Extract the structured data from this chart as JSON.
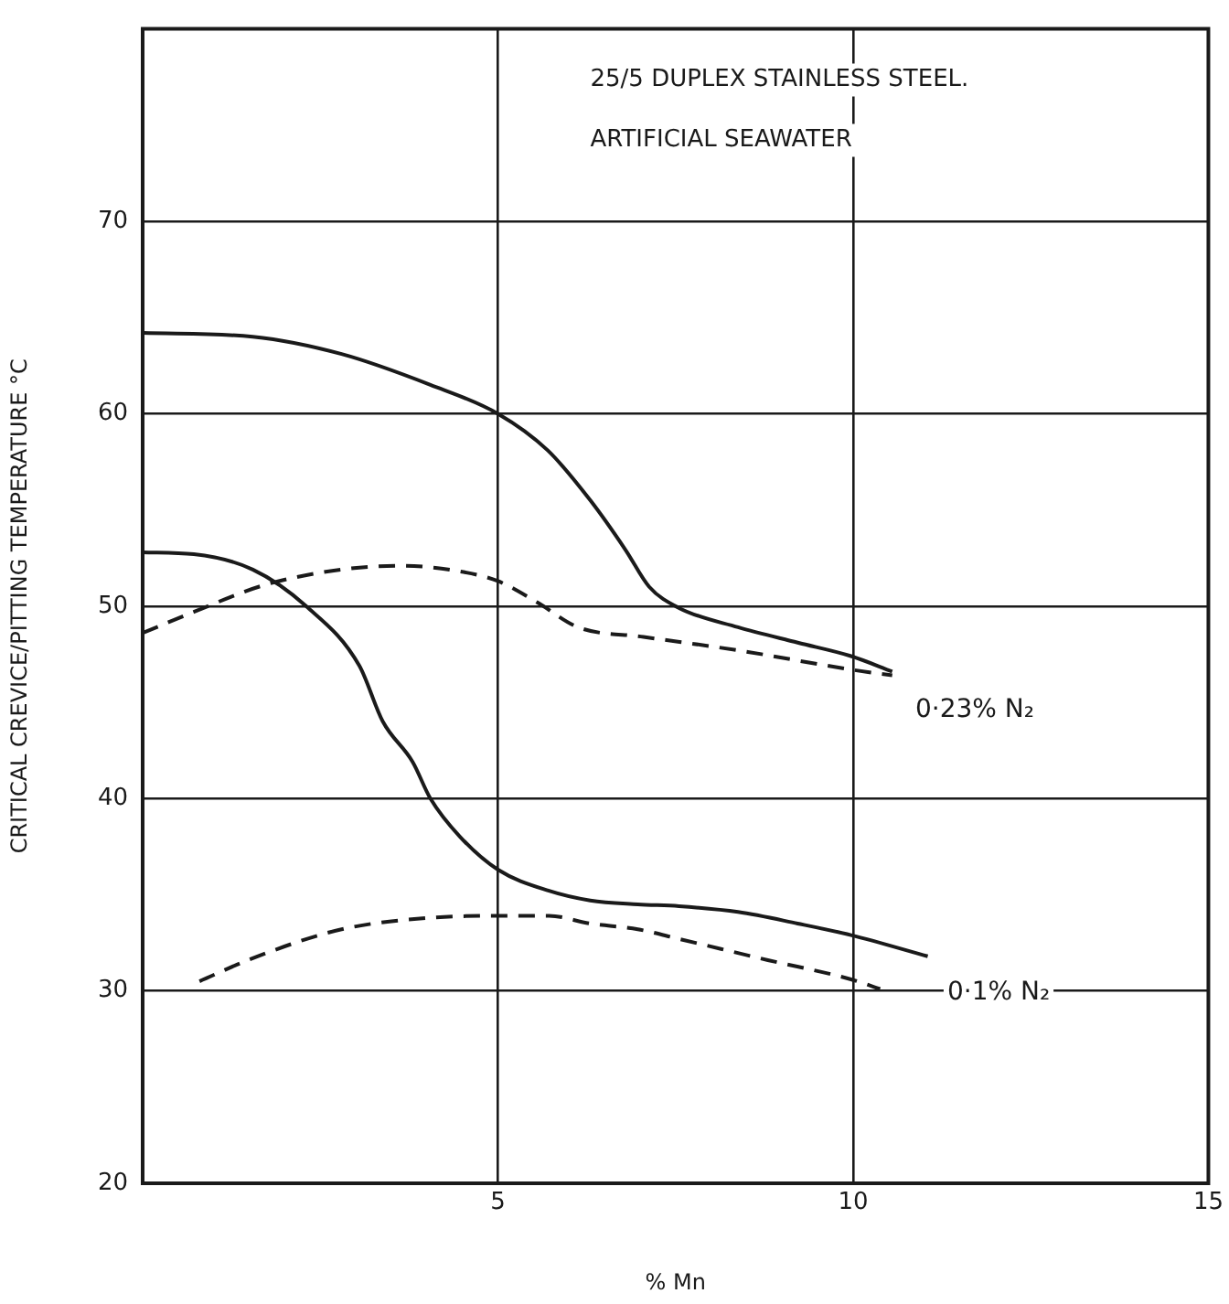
{
  "chart_data": {
    "type": "line",
    "title": "25/5 DUPLEX STAINLESS STEEL.",
    "subtitle": "ARTIFICIAL SEAWATER",
    "xlabel": "% Mn",
    "ylabel": "CRITICAL CREVICE/PITTING TEMPERATURE °C",
    "xlim": [
      0,
      15
    ],
    "xticks": [
      5,
      10,
      15
    ],
    "ylim": [
      20,
      80
    ],
    "yticks": [
      20,
      30,
      40,
      50,
      60,
      70
    ],
    "grid": true,
    "series": [
      {
        "color": "#1a1a1a",
        "line_style": "solid",
        "x": [
          0,
          1.55,
          2.8,
          4.05,
          5,
          5.7,
          6.3,
          6.8,
          7.13,
          7.55,
          8.38,
          9.22,
          9.97,
          10.55
        ],
        "values": [
          64.2,
          64.0,
          63.1,
          61.5,
          60,
          58.1,
          55.5,
          52.9,
          51.0,
          49.9,
          48.9,
          48.1,
          47.4,
          46.6
        ]
      },
      {
        "color": "#1a1a1a",
        "line_style": "dashed",
        "x": [
          0,
          0.72,
          1.72,
          2.8,
          3.63,
          4.47,
          5,
          5.55,
          6.13,
          7.05,
          8.38,
          9.97,
          10.55
        ],
        "values": [
          48.6,
          49.7,
          51.1,
          51.9,
          52.1,
          51.8,
          51.3,
          50.2,
          48.9,
          48.4,
          47.7,
          46.7,
          46.4
        ]
      },
      {
        "color": "#1a1a1a",
        "line_style": "solid",
        "x": [
          0,
          0.72,
          1.55,
          2.3,
          3.05,
          3.38,
          3.8,
          4.05,
          4.47,
          5,
          5.72,
          6.3,
          6.97,
          7.55,
          8.38,
          9.22,
          9.97,
          11.05
        ],
        "values": [
          52.8,
          52.7,
          51.9,
          50.0,
          46.9,
          44.0,
          41.9,
          40.0,
          38.0,
          36.3,
          35.2,
          34.7,
          34.5,
          34.4,
          34.1,
          33.5,
          32.9,
          31.8
        ]
      },
      {
        "color": "#1a1a1a",
        "line_style": "dashed",
        "x": [
          0.8,
          1.55,
          2.8,
          4.05,
          5,
          5.72,
          6.3,
          6.97,
          7.55,
          8.8,
          9.97,
          10.38
        ],
        "values": [
          30.5,
          31.7,
          33.2,
          33.8,
          33.9,
          33.9,
          33.5,
          33.2,
          32.7,
          31.6,
          30.6,
          30.1
        ]
      }
    ],
    "annotations": [
      "0·23% N₂",
      "0·1% N₂"
    ]
  }
}
